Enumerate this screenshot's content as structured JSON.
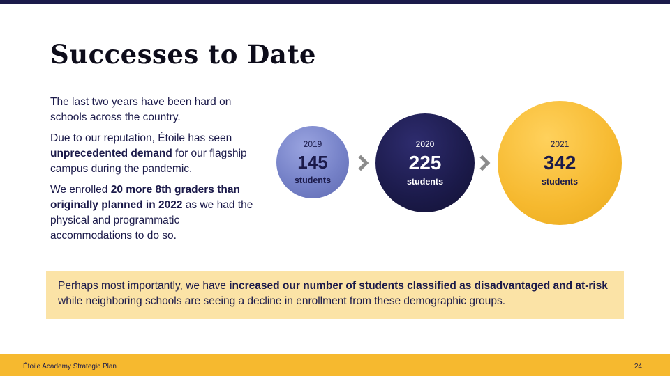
{
  "slide": {
    "title": "Successes to Date"
  },
  "body": {
    "p1": "The last two years have been hard on schools across the country.",
    "p2_pre": "Due to our reputation, Étoile has seen ",
    "p2_bold": "unprecedented demand",
    "p2_post": " for our flagship campus during the pandemic.",
    "p3_pre": "We enrolled ",
    "p3_bold": "20 more 8th graders than originally planned in 2022",
    "p3_post": " as we had the physical and programmatic accommodations to do so."
  },
  "enrollment": [
    {
      "year": "2019",
      "count": "145",
      "unit": "students",
      "color": "#7682c8"
    },
    {
      "year": "2020",
      "count": "225",
      "unit": "students",
      "color": "#1b1a4a"
    },
    {
      "year": "2021",
      "count": "342",
      "unit": "students",
      "color": "#f6b92f"
    }
  ],
  "callout": {
    "pre": "Perhaps most importantly, we have ",
    "bold": "increased our number of students classified as disadvantaged and at-risk",
    "post": " while neighboring schools are seeing a decline in enrollment from these demographic groups."
  },
  "footer": {
    "title": "Étoile Academy Strategic Plan",
    "page": "24"
  },
  "colors": {
    "navy": "#1b1a4a",
    "gold": "#f6b92f",
    "periwinkle": "#7682c8",
    "callout_bg": "#fbe3a6"
  },
  "icons": {
    "arrow": "chevron-right-icon"
  }
}
